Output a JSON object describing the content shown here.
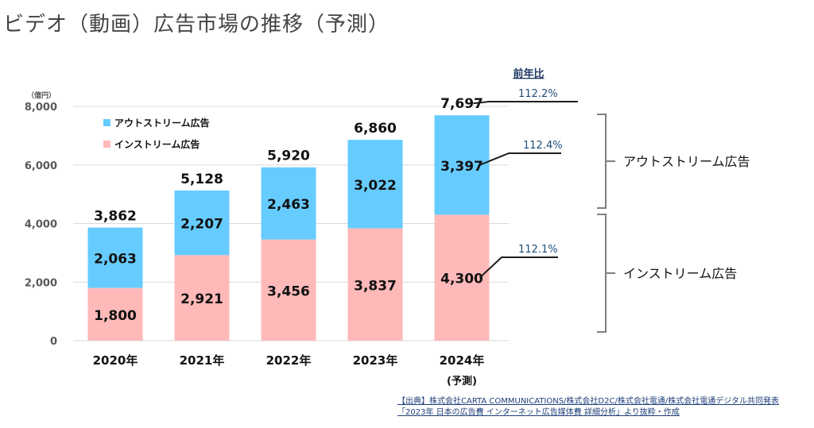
{
  "title": "ビデオ（動画）広告市場の推移（予測）",
  "chart_data": {
    "type": "bar",
    "stacked": true,
    "unit_label": "（億円）",
    "categories": [
      "2020年",
      "2021年",
      "2022年",
      "2023年",
      "2024年"
    ],
    "category_sublabels": [
      "",
      "",
      "",
      "",
      "(予測)"
    ],
    "series": [
      {
        "name": "インストリーム広告",
        "values": [
          1800,
          2921,
          3456,
          3837,
          4300
        ],
        "labels": [
          "1,800",
          "2,921",
          "3,456",
          "3,837",
          "4,300"
        ],
        "color": "#ffb9b9"
      },
      {
        "name": "アウトストリーム広告",
        "values": [
          2063,
          2207,
          2463,
          3022,
          3397
        ],
        "labels": [
          "2,063",
          "2,207",
          "2,463",
          "3,022",
          "3,397"
        ],
        "color": "#66ccff"
      }
    ],
    "totals": [
      3862,
      5128,
      5920,
      6860,
      7697
    ],
    "total_labels": [
      "3,862",
      "5,128",
      "5,920",
      "6,860",
      "7,697"
    ],
    "ylim": [
      0,
      8000
    ],
    "yticks": [
      0,
      2000,
      4000,
      6000,
      8000
    ],
    "ytick_labels": [
      "0",
      "2,000",
      "4,000",
      "6,000",
      "8,000"
    ],
    "grid": true,
    "legend": {
      "placement": "top-left",
      "entries": [
        "アウトストリーム広告",
        "インストリーム広告"
      ]
    },
    "yoy": {
      "header": "前年比",
      "total": "112.2%",
      "outstream": "112.4%",
      "instream": "112.1%"
    },
    "bracket_labels": [
      "アウトストリーム広告",
      "インストリーム広告"
    ]
  },
  "source": {
    "line1": "【出典】株式会社CARTA COMMUNICATIONS/株式会社D2C/株式会社電通/株式会社電通デジタル共同発表",
    "line2": "「2023年 日本の広告費 インターネット広告媒体費 詳細分析」より抜粋・作成"
  }
}
